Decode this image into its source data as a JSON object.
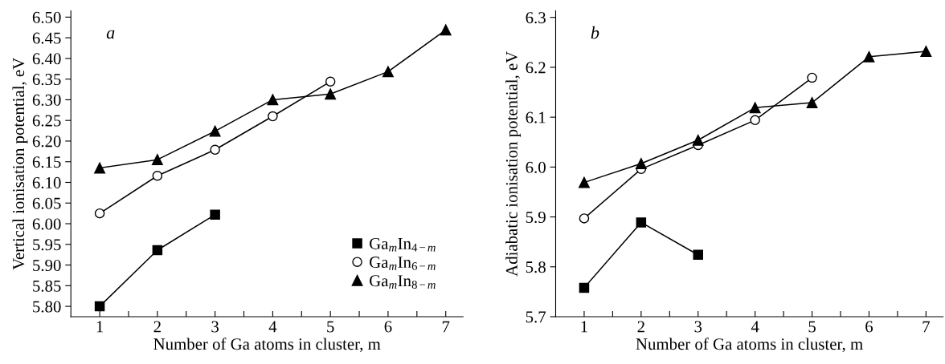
{
  "chart_data": [
    {
      "type": "line",
      "xlabel": "Number of Ga atoms in cluster, m",
      "ylabel": "Vertical ionisation potential, eV",
      "annotations": [
        "a"
      ],
      "legend": "bottom right",
      "grid": false,
      "line_style": "solid",
      "xlim": [
        0.5,
        7.3
      ],
      "xticks": [
        1,
        {
          "value": 1.5,
          "label": null
        },
        2,
        {
          "value": 2.5,
          "label": null
        },
        3,
        {
          "value": 3.5,
          "label": null
        },
        4,
        {
          "value": 4.5,
          "label": null
        },
        5,
        {
          "value": 5.5,
          "label": null
        },
        6,
        {
          "value": 6.5,
          "label": null
        },
        7
      ],
      "ylim": [
        5.775,
        6.515
      ],
      "yticks": [
        {
          "value": 5.8,
          "label": "5.80"
        },
        5.85,
        {
          "value": 5.9,
          "label": "5.90"
        },
        5.95,
        {
          "value": 6.0,
          "label": "6.00"
        },
        6.05,
        {
          "value": 6.1,
          "label": "6.10"
        },
        6.15,
        {
          "value": 6.2,
          "label": "6.20"
        },
        6.25,
        {
          "value": 6.3,
          "label": "6.30"
        },
        6.35,
        {
          "value": 6.4,
          "label": "6.40"
        },
        6.45,
        {
          "value": 6.5,
          "label": "6.50"
        }
      ],
      "series": [
        {
          "name": "Ga$_{m}$In$_{4−m}$",
          "color": "#000000",
          "marker": "square",
          "x": [
            1,
            2,
            3
          ],
          "values": [
            5.8,
            5.936,
            6.022
          ]
        },
        {
          "name": "Ga$_{m}$In$_{6−m}$",
          "color": "#000000",
          "marker": "circle",
          "x": [
            1,
            2,
            3,
            4,
            5
          ],
          "values": [
            6.025,
            6.116,
            6.179,
            6.26,
            6.344
          ]
        },
        {
          "name": "Ga$_{m}$In$_{8−m}$",
          "color": "#000000",
          "marker": "triangle",
          "x": [
            1,
            2,
            3,
            4,
            5,
            6,
            7
          ],
          "values": [
            6.135,
            6.155,
            6.224,
            6.3,
            6.314,
            6.368,
            6.469
          ]
        }
      ]
    },
    {
      "type": "line",
      "xlabel": "Number of Ga atoms in cluster, m",
      "ylabel": "Adiabatic ionisation potential, eV",
      "annotations": [
        "b"
      ],
      "grid": false,
      "line_style": "solid",
      "xlim": [
        0.5,
        7.3
      ],
      "xticks": [
        1,
        {
          "value": 1.5,
          "label": null
        },
        2,
        {
          "value": 2.5,
          "label": null
        },
        3,
        {
          "value": 3.5,
          "label": null
        },
        4,
        {
          "value": 4.5,
          "label": null
        },
        5,
        {
          "value": 5.5,
          "label": null
        },
        6,
        {
          "value": 6.5,
          "label": null
        },
        7
      ],
      "ylim": [
        5.7,
        6.313
      ],
      "yticks": [
        5.7,
        5.8,
        5.9,
        {
          "value": 6.0,
          "label": "6.0"
        },
        6.1,
        6.2,
        6.3
      ],
      "series": [
        {
          "color": "#000000",
          "marker": "square",
          "x": [
            1,
            2,
            3
          ],
          "values": [
            5.758,
            5.889,
            5.824
          ]
        },
        {
          "color": "#000000",
          "marker": "circle",
          "x": [
            1,
            2,
            3,
            4,
            5
          ],
          "values": [
            5.897,
            5.996,
            6.044,
            6.094,
            6.179
          ]
        },
        {
          "color": "#000000",
          "marker": "triangle",
          "x": [
            1,
            2,
            3,
            4,
            5,
            6,
            7
          ],
          "values": [
            5.969,
            6.007,
            6.054,
            6.119,
            6.129,
            6.221,
            6.232
          ]
        }
      ]
    }
  ]
}
